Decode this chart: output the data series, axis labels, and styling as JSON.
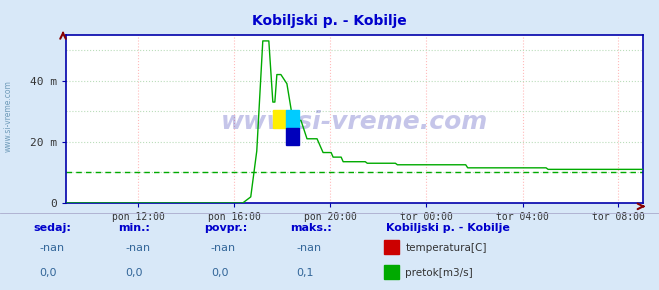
{
  "title": "Kobiljski p. - Kobilje",
  "title_color": "#0000cc",
  "bg_color": "#d8e8f8",
  "plot_bg_color": "#ffffff",
  "grid_color_v": "#ffbbbb",
  "grid_color_h": "#bbddbb",
  "x_tick_labels": [
    "pon 12:00",
    "pon 16:00",
    "pon 20:00",
    "tor 00:00",
    "tor 04:00",
    "tor 08:00"
  ],
  "x_tick_positions": [
    0.125,
    0.292,
    0.458,
    0.625,
    0.792,
    0.958
  ],
  "y_ticks": [
    0,
    20,
    40
  ],
  "y_tick_labels": [
    "0",
    "20 m",
    "40 m"
  ],
  "ylim": [
    0,
    55
  ],
  "watermark": "www.si-vreme.com",
  "watermark_color": "#1a1aaa",
  "sidebar_text": "www.si-vreme.com",
  "sidebar_color": "#5588aa",
  "legend_title": "Kobiljski p. - Kobilje",
  "legend_title_color": "#0000cc",
  "temp_color": "#cc0000",
  "flow_color": "#00aa00",
  "dashed_line_color": "#00aa00",
  "dashed_line_y": 10,
  "spine_color": "#0000aa",
  "arrow_color": "#880000",
  "bottom_labels": [
    "sedaj:",
    "min.:",
    "povpr.:",
    "maks.:"
  ],
  "bottom_row1": [
    "-nan",
    "-nan",
    "-nan",
    "-nan"
  ],
  "bottom_row2": [
    "0,0",
    "0,0",
    "0,0",
    "0,1"
  ],
  "bottom_label_color": "#0000cc",
  "bottom_value_color": "#336699",
  "n_points": 288
}
